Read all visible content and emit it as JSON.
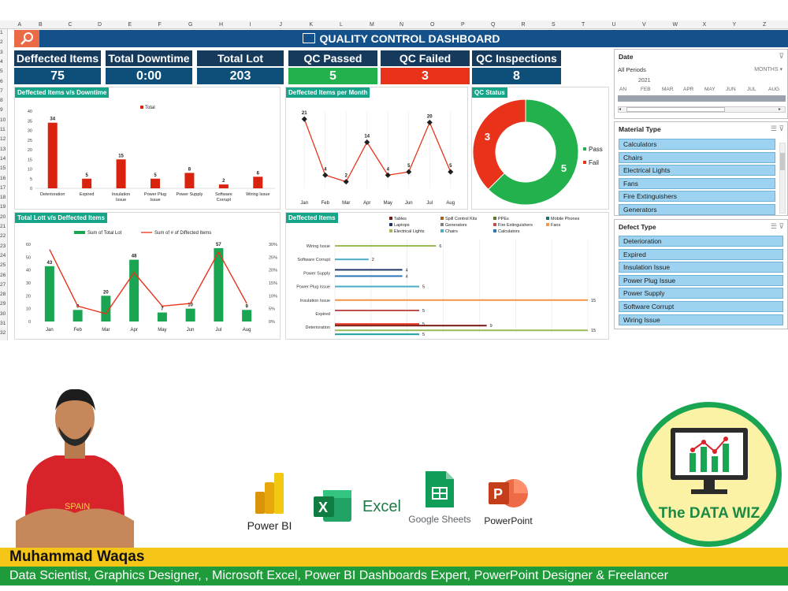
{
  "columns": [
    "A",
    "B",
    "C",
    "D",
    "E",
    "F",
    "G",
    "H",
    "I",
    "J",
    "K",
    "L",
    "M",
    "N",
    "O",
    "P",
    "Q",
    "R",
    "S",
    "T",
    "U",
    "V",
    "W",
    "X",
    "Y",
    "Z"
  ],
  "rows": [
    "1",
    "2",
    "3",
    "4",
    "5",
    "6",
    "7",
    "8",
    "9",
    "10",
    "11",
    "12",
    "13",
    "14",
    "15",
    "16",
    "17",
    "18",
    "19",
    "20",
    "21",
    "22",
    "23",
    "24",
    "25",
    "26",
    "27",
    "28",
    "29",
    "30",
    "31",
    "32"
  ],
  "title": "QUALITY CONTROL DASHBOARD",
  "kpis": [
    {
      "label": "Deffected Items",
      "value": "75",
      "color": "#0e4f79"
    },
    {
      "label": "Total Downtime",
      "value": "0:00",
      "color": "#0e4f79"
    },
    {
      "label": "Total Lot",
      "value": "203",
      "color": "#0e4f79"
    },
    {
      "label": "QC Passed",
      "value": "5",
      "color": "#22b14c"
    },
    {
      "label": "QC Failed",
      "value": "3",
      "color": "#e8331a"
    },
    {
      "label": "QC Inspections",
      "value": "8",
      "color": "#0e4f79"
    }
  ],
  "panels": {
    "downtime": "Deffected Items v/s Downtime",
    "per_month": "Deffected Items per Month",
    "status": "QC Status",
    "lot": "Total Lott v/s Deffected Items",
    "items": "Deffected Items"
  },
  "chart_data": [
    {
      "type": "bar",
      "legend": [
        "Total"
      ],
      "categories": [
        "Deterioration",
        "Expired",
        "Insulation Issue",
        "Power Plug Issue",
        "Power Supply",
        "Software Corrupt",
        "Wiring Issue"
      ],
      "values": [
        34,
        5,
        15,
        5,
        8,
        2,
        6
      ],
      "ylim": [
        0,
        40
      ],
      "yticks": [
        "0",
        "5",
        "10",
        "15",
        "20",
        "25",
        "30",
        "35",
        "40"
      ]
    },
    {
      "type": "line",
      "categories": [
        "Jan",
        "Feb",
        "Mar",
        "Apr",
        "May",
        "Jun",
        "Jul",
        "Aug"
      ],
      "values": [
        21,
        4,
        2,
        14,
        4,
        5,
        20,
        5
      ]
    },
    {
      "type": "pie",
      "labels": [
        "Pass",
        "Fail"
      ],
      "values": [
        5,
        3
      ],
      "colors": [
        "#22b14c",
        "#e8331a"
      ]
    },
    {
      "type": "bar",
      "categories": [
        "Jan",
        "Feb",
        "Mar",
        "Apr",
        "May",
        "Jun",
        "Jul",
        "Aug"
      ],
      "series": [
        {
          "name": "Sum of Total Lot",
          "values": [
            43,
            9,
            20,
            48,
            7,
            10,
            57,
            9
          ]
        },
        {
          "name": "Sum of # of Diffected Items",
          "values": [
            0.28,
            0.06,
            0.03,
            0.19,
            0.06,
            0.07,
            0.27,
            0.07
          ]
        }
      ],
      "ylim": [
        0,
        60
      ],
      "y2lim": [
        0,
        0.3
      ],
      "yticks": [
        "0",
        "10",
        "20",
        "30",
        "40",
        "50",
        "60"
      ],
      "y2ticks": [
        "0%",
        "5%",
        "10%",
        "15%",
        "20%",
        "25%",
        "30%"
      ]
    },
    {
      "type": "bar",
      "legend": [
        "Tables",
        "Spill Control Kits",
        "PPEs",
        "Mobile Phones",
        "Laptops",
        "Generators",
        "Fire Extinguishers",
        "Fans",
        "Electrical Lights",
        "Chairs",
        "Calculators"
      ],
      "legend_colors": [
        "#7b1a12",
        "#a0611e",
        "#5a7a2b",
        "#1e6e74",
        "#1f3864",
        "#7f7f7f",
        "#c0504d",
        "#f79646",
        "#9bbb59",
        "#4bacc6",
        "#2e75b6"
      ],
      "categories": [
        "Wiring Issue",
        "Software Corrupt",
        "Power Supply",
        "Power Plug Issue",
        "Insulation Issue",
        "Expired",
        "Deterioration"
      ],
      "bars": [
        {
          "cat": "Wiring Issue",
          "value": 6,
          "color": "#9bbb59"
        },
        {
          "cat": "Software Corrupt",
          "value": 2,
          "color": "#4bacc6"
        },
        {
          "cat": "Power Supply",
          "value": 4,
          "color": "#1f3864"
        },
        {
          "cat": "Power Supply",
          "value": 4,
          "color": "#2e75b6"
        },
        {
          "cat": "Power Plug Issue",
          "value": 5,
          "color": "#4bacc6"
        },
        {
          "cat": "Insulation Issue",
          "value": 15,
          "color": "#f79646"
        },
        {
          "cat": "Expired",
          "value": 5,
          "color": "#c0504d"
        },
        {
          "cat": "Deterioration",
          "value": 5,
          "color": "#e8331a"
        },
        {
          "cat": "Deterioration",
          "value": 9,
          "color": "#7b1a12"
        },
        {
          "cat": "Deterioration",
          "value": 15,
          "color": "#9bbb59"
        },
        {
          "cat": "Deterioration",
          "value": 5,
          "color": "#1e9ea0"
        }
      ],
      "xlim": [
        0,
        15
      ]
    }
  ],
  "date_slicer": {
    "title": "Date",
    "period": "All Periods",
    "unit": "MONTHS",
    "year": "2021",
    "months": [
      "AN",
      "FEB",
      "MAR",
      "APR",
      "MAY",
      "JUN",
      "JUL",
      "AUG"
    ]
  },
  "material_slicer": {
    "title": "Material Type",
    "items": [
      "Calculators",
      "Chairs",
      "Electrical Lights",
      "Fans",
      "Fire Extinguishers",
      "Generators"
    ]
  },
  "defect_slicer": {
    "title": "Defect Type",
    "items": [
      "Deterioration",
      "Expired",
      "Insulation Issue",
      "Power Plug Issue",
      "Power Supply",
      "Software Corrupt",
      "Wiring Issue"
    ]
  },
  "apps": [
    {
      "name": "Power BI"
    },
    {
      "name": "Excel"
    },
    {
      "name": "Google Sheets"
    },
    {
      "name": "PowerPoint"
    }
  ],
  "brand": "The DATA WIZ",
  "author": {
    "name": "Muhammad Waqas",
    "role": "Data Scientist, Graphics Designer, , Microsoft Excel, Power BI Dashboards Expert, PowerPoint Designer & Freelancer",
    "shirt_text": "SPAIN"
  }
}
